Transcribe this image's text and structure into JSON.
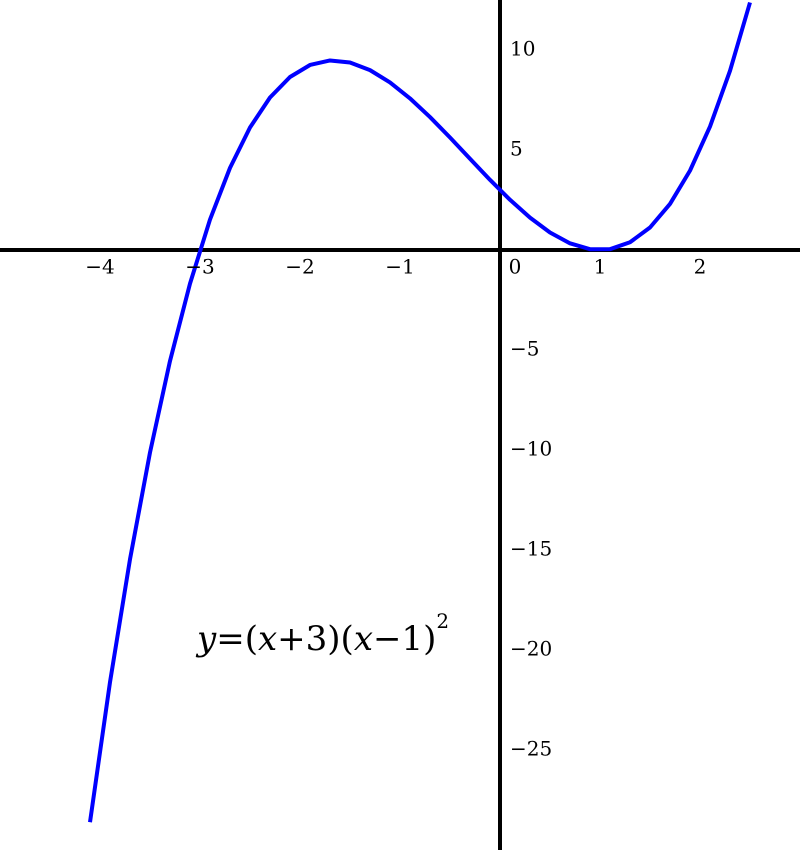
{
  "chart_data": {
    "type": "line",
    "x": [
      -4.1,
      -3.9,
      -3.7,
      -3.5,
      -3.3,
      -3.1,
      -2.9,
      -2.7,
      -2.5,
      -2.3,
      -2.1,
      -1.9,
      -1.7,
      -1.5,
      -1.3,
      -1.1,
      -0.9,
      -0.7,
      -0.5,
      -0.3,
      -0.1,
      0.1,
      0.3,
      0.5,
      0.7,
      0.9,
      1.1,
      1.3,
      1.5,
      1.7,
      1.9,
      2.1,
      2.3,
      2.5
    ],
    "series": [
      {
        "color": "#0000ff",
        "values": [
          -28.611,
          -21.609,
          -15.463,
          -10.125,
          -5.547,
          -1.681,
          1.521,
          4.107,
          6.125,
          7.623,
          8.649,
          9.251,
          9.477,
          9.375,
          8.993,
          8.379,
          7.581,
          6.647,
          5.625,
          4.563,
          3.509,
          2.511,
          1.617,
          0.875,
          0.333,
          0.039,
          0.041,
          0.387,
          1.125,
          2.303,
          3.969,
          6.171,
          8.957,
          12.375
        ]
      }
    ],
    "xlim": [
      -5,
      3
    ],
    "ylim": [
      -30,
      12.5
    ],
    "xticks": [
      {
        "value": -4,
        "label": "−4"
      },
      {
        "value": -3,
        "label": "−3"
      },
      {
        "value": -2,
        "label": "−2"
      },
      {
        "value": -1,
        "label": "−1"
      },
      0,
      1,
      2
    ],
    "yticks": [
      {
        "value": -25,
        "label": "−25"
      },
      {
        "value": -20,
        "label": "−20"
      },
      {
        "value": -15,
        "label": "−15"
      },
      {
        "value": -10,
        "label": "−10"
      },
      {
        "value": -5,
        "label": "−5"
      },
      5,
      10
    ],
    "grid": true,
    "annotation": [
      {
        "text": "y",
        "italic": true
      },
      {
        "text": "=(",
        "italic": false
      },
      {
        "text": "x",
        "italic": true
      },
      {
        "text": "+3)(",
        "italic": false
      },
      {
        "text": "x",
        "italic": true
      },
      {
        "text": "−1)",
        "italic": false
      },
      {
        "text": "2",
        "italic": false,
        "superscript": true
      }
    ]
  }
}
